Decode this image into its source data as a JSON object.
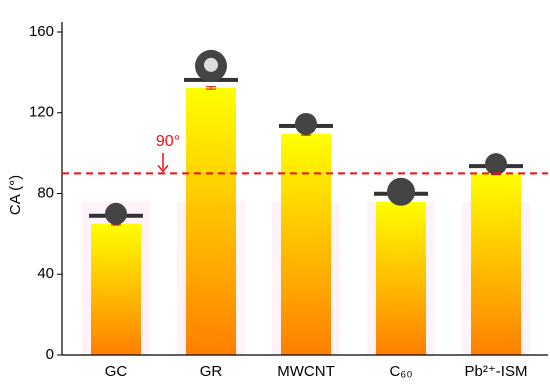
{
  "chart_data": {
    "type": "bar",
    "y_label": "CA (°)",
    "categories": [
      "GC",
      "GR",
      "MWCNT",
      "C₆₀",
      "Pb²⁺-ISM"
    ],
    "values": [
      65,
      132.3,
      109.5,
      75.9,
      89.6
    ],
    "errors": [
      0.6,
      0.6,
      0.6,
      0.5,
      0.3
    ],
    "color_top": "#ffff00",
    "color_bottom": "#ff7f00",
    "error_color": "#e00000",
    "ylim": [
      0,
      160
    ],
    "yticks": [
      0,
      40,
      80,
      120,
      160
    ],
    "reference_line": {
      "value": 90,
      "label": "90°",
      "color": "#ee1111"
    }
  }
}
